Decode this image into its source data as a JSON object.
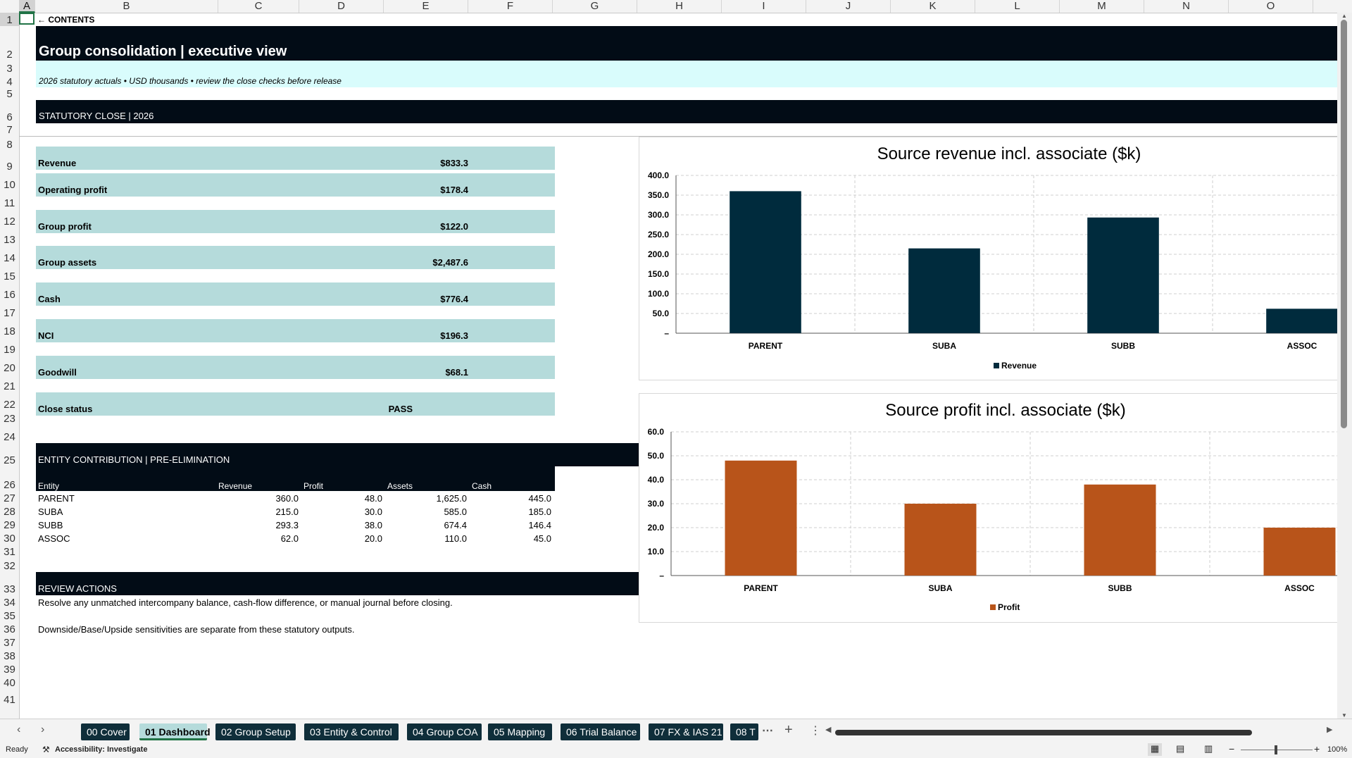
{
  "sheet": {
    "columns": [
      "A",
      "B",
      "C",
      "D",
      "E",
      "F",
      "G",
      "H",
      "I",
      "J",
      "K",
      "L",
      "M",
      "N",
      "O"
    ],
    "rows": [
      "1",
      "2",
      "3",
      "4",
      "5",
      "6",
      "7",
      "8",
      "9",
      "10",
      "11",
      "12",
      "13",
      "14",
      "15",
      "16",
      "17",
      "18",
      "19",
      "20",
      "21",
      "22",
      "23",
      "24",
      "25",
      "26",
      "27",
      "28",
      "29",
      "30",
      "31",
      "32",
      "33",
      "34",
      "35",
      "36",
      "37",
      "38",
      "39",
      "40",
      "41"
    ],
    "contents_link": "← CONTENTS",
    "title": "Group consolidation | executive view",
    "subtitle": "2026 statutory actuals • USD thousands • review the close checks before release",
    "section_close": "STATUTORY CLOSE | 2026",
    "kpis": [
      {
        "label": "Revenue",
        "value": "$833.3"
      },
      {
        "label": "Operating profit",
        "value": "$178.4"
      },
      {
        "label": "Group profit",
        "value": "$122.0"
      },
      {
        "label": "Group assets",
        "value": "$2,487.6"
      },
      {
        "label": "Cash",
        "value": "$776.4"
      },
      {
        "label": "NCI",
        "value": "$196.3"
      },
      {
        "label": "Goodwill",
        "value": "$68.1"
      },
      {
        "label": "Close status",
        "value": "PASS"
      }
    ],
    "section_entity": "ENTITY CONTRIBUTION | PRE-ELIMINATION",
    "entity_table": {
      "headers": [
        "Entity",
        "Revenue",
        "Profit",
        "Assets",
        "Cash"
      ],
      "rows": [
        [
          "PARENT",
          "360.0",
          "48.0",
          "1,625.0",
          "445.0"
        ],
        [
          "SUBA",
          "215.0",
          "30.0",
          "585.0",
          "185.0"
        ],
        [
          "SUBB",
          "293.3",
          "38.0",
          "674.4",
          "146.4"
        ],
        [
          "ASSOC",
          "62.0",
          "20.0",
          "110.0",
          "45.0"
        ]
      ]
    },
    "section_review": "REVIEW ACTIONS",
    "review_lines": [
      "Resolve any unmatched intercompany balance, cash-flow difference, or manual journal before closing.",
      "Downside/Base/Upside sensitivities are separate from these statutory outputs."
    ]
  },
  "chart_data": [
    {
      "type": "bar",
      "title": "Source revenue incl. associate ($k)",
      "categories": [
        "PARENT",
        "SUBA",
        "SUBB",
        "ASSOC"
      ],
      "series": [
        {
          "name": "Revenue",
          "values": [
            360.0,
            215.0,
            293.3,
            62.0
          ],
          "color": "#002b3d"
        }
      ],
      "ylim": [
        0,
        400
      ],
      "yticks": [
        "–",
        "50.0",
        "100.0",
        "150.0",
        "200.0",
        "250.0",
        "300.0",
        "350.0",
        "400.0"
      ],
      "grid": true,
      "legend": "bottom"
    },
    {
      "type": "bar",
      "title": "Source profit incl. associate ($k)",
      "categories": [
        "PARENT",
        "SUBA",
        "SUBB",
        "ASSOC"
      ],
      "series": [
        {
          "name": "Profit",
          "values": [
            48.0,
            30.0,
            38.0,
            20.0
          ],
          "color": "#b8541a"
        }
      ],
      "ylim": [
        0,
        60
      ],
      "yticks": [
        "–",
        "10.0",
        "20.0",
        "30.0",
        "40.0",
        "50.0",
        "60.0"
      ],
      "grid": true,
      "legend": "bottom"
    }
  ],
  "tabs": [
    "00 Cover",
    "01 Dashboard",
    "02 Group Setup",
    "03 Entity & Control",
    "04 Group COA",
    "05 Mapping",
    "06 Trial Balance",
    "07 FX & IAS 21",
    "08 T"
  ],
  "active_tab": "01 Dashboard",
  "tab_more": "⋯",
  "tab_add": "+",
  "tab_options": "⋮",
  "status_bar": {
    "ready": "Ready",
    "accessibility": "Accessibility: Investigate",
    "zoom": "100%"
  },
  "colors": {
    "dark_band": "#020c16",
    "teal_fill": "#b5dbdb",
    "subtitle_fill": "#d9fcfc",
    "tab_fill": "#0f2e3a"
  }
}
